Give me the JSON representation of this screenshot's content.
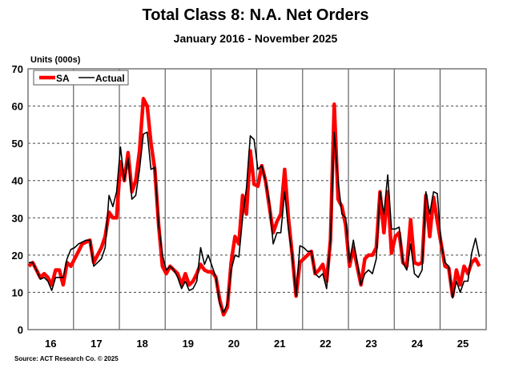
{
  "chart_data": {
    "type": "line",
    "title": "Total Class 8: N.A. Net Orders",
    "subtitle": "January 2016 - November 2025",
    "ylabel": "Units (000s)",
    "xlabel": "",
    "ylim": [
      0,
      70
    ],
    "yticks": [
      0,
      10,
      20,
      30,
      40,
      50,
      60,
      70
    ],
    "xtick_labels": [
      "16",
      "17",
      "18",
      "19",
      "20",
      "21",
      "22",
      "23",
      "24",
      "25"
    ],
    "x_start": "2016-01",
    "x_end": "2025-11",
    "grid": "horizontal dashed; vertical solid at year boundaries",
    "legend_placement": "top-left",
    "series": [
      {
        "name": "SA",
        "color": "#ff0000",
        "values": [
          17,
          18,
          16,
          14,
          15,
          14,
          12,
          16,
          16,
          12,
          18,
          17,
          19,
          21,
          23,
          23.5,
          24,
          18,
          20,
          22,
          25,
          31.5,
          30,
          30,
          45,
          40,
          47.5,
          37,
          40,
          48,
          62,
          60,
          50,
          43,
          28,
          17,
          15,
          17,
          16,
          15,
          12,
          15,
          12,
          13,
          15,
          17.5,
          16,
          15.5,
          15.5,
          14,
          8,
          4,
          6,
          18,
          25,
          23,
          36,
          31,
          48,
          39,
          38.5,
          44,
          40,
          33,
          26,
          29,
          31,
          43,
          30,
          20,
          9,
          18,
          19,
          20,
          21,
          15,
          16,
          17.5,
          13,
          24,
          60.5,
          35,
          33,
          28,
          17,
          22,
          17,
          12,
          19,
          20,
          20,
          22,
          37,
          26,
          37,
          20.5,
          25,
          26,
          18,
          17,
          29.5,
          18,
          17.5,
          18,
          36,
          25,
          35.5,
          29,
          23,
          17,
          16.5,
          9,
          16,
          12,
          17,
          15,
          18,
          19,
          17
        ]
      },
      {
        "name": "Actual",
        "color": "#000000",
        "values": [
          18,
          18,
          16,
          13.5,
          14,
          13,
          10.5,
          14,
          14,
          14,
          19,
          21.5,
          22,
          23,
          23.5,
          24,
          24,
          17,
          18,
          19,
          22,
          36,
          33,
          37,
          49,
          40,
          46,
          35,
          36,
          43,
          52.5,
          53,
          43,
          43.5,
          28,
          20,
          16,
          17,
          16,
          14,
          11,
          13,
          10.5,
          11,
          13,
          22,
          17.5,
          20,
          17,
          14,
          7,
          4.5,
          7,
          16,
          20,
          19.5,
          30,
          38,
          52,
          51,
          43,
          44,
          40,
          34,
          23,
          26,
          26,
          37,
          27,
          20,
          9,
          22.5,
          22,
          21,
          21,
          15,
          14,
          15,
          11,
          24,
          53,
          40,
          31,
          30,
          18,
          24,
          18,
          12,
          15,
          16,
          15,
          19,
          37,
          31,
          41.5,
          27,
          27,
          27.5,
          18,
          16,
          23,
          15,
          14,
          16,
          37,
          31,
          37,
          36.5,
          23,
          18,
          17,
          8.5,
          13,
          10,
          13,
          13,
          20.5,
          24.5,
          19.5
        ]
      }
    ]
  },
  "source": "Source: ACT Research Co. © 2025"
}
